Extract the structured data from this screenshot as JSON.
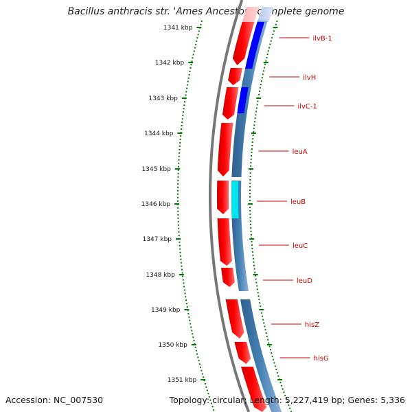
{
  "title": "Bacillus anthracis str. 'Ames Ancestor', complete genome",
  "footer": {
    "accession": "Accession: NC_007530",
    "summary": "Topology: circular; Length: 5,227,419 bp; Genes: 5,336"
  },
  "ruler": {
    "ticks": [
      "1341 kbp",
      "1342 kbp",
      "1343 kbp",
      "1344 kbp",
      "1345 kbp",
      "1346 kbp",
      "1347 kbp",
      "1348 kbp",
      "1349 kbp",
      "1350 kbp",
      "1351 kbp"
    ]
  },
  "genes": [
    {
      "name": "ilvB-1"
    },
    {
      "name": "ilvH"
    },
    {
      "name": "ilvC-1"
    },
    {
      "name": "leuA"
    },
    {
      "name": "leuB"
    },
    {
      "name": "leuC"
    },
    {
      "name": "leuD"
    },
    {
      "name": "hisZ"
    },
    {
      "name": "hisG"
    }
  ],
  "colors": {
    "cds": "#ff0000",
    "backbone": "#777777",
    "feature_track": "#4682b4",
    "highlight_dark": "#0000ff",
    "highlight_light": "#00e5ee",
    "tick": "#007700",
    "label": "#cc0000"
  }
}
